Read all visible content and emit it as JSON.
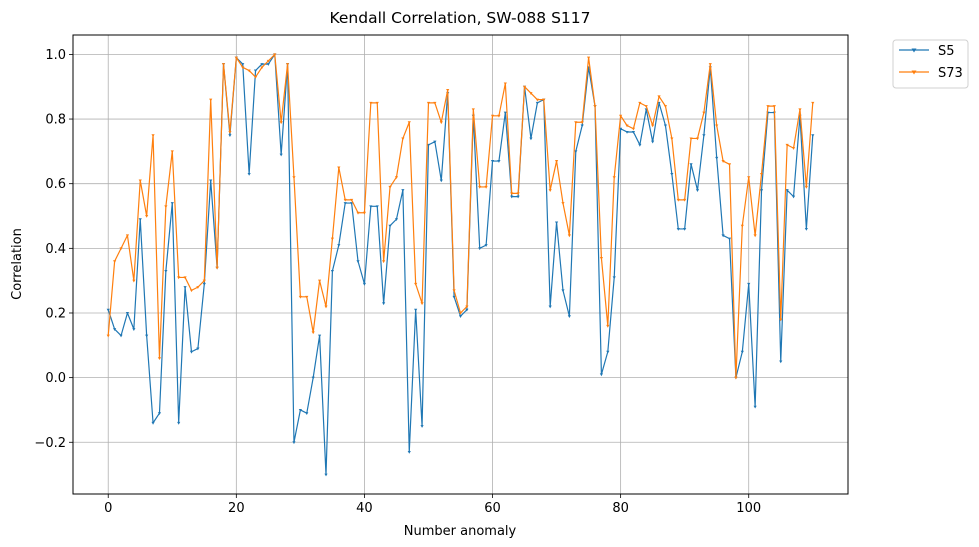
{
  "chart_data": {
    "type": "line",
    "title": "Kendall Correlation, SW-088  S117",
    "xlabel": "Number anomaly",
    "ylabel": "Correlation",
    "xlim": [
      -5.5,
      115.5
    ],
    "ylim": [
      -0.36,
      1.06
    ],
    "xticks": [
      0,
      20,
      40,
      60,
      80,
      100
    ],
    "yticks": [
      -0.2,
      0.0,
      0.2,
      0.4,
      0.6,
      0.8,
      1.0
    ],
    "ytick_labels": [
      "−0.2",
      "0.0",
      "0.2",
      "0.4",
      "0.6",
      "0.8",
      "1.0"
    ],
    "grid": true,
    "legend": "outside-top-right",
    "series": [
      {
        "name": "S5",
        "color": "#1f77b4",
        "values": [
          0.21,
          0.15,
          0.13,
          0.2,
          0.15,
          0.49,
          0.13,
          -0.14,
          -0.11,
          0.33,
          0.54,
          -0.14,
          0.28,
          0.08,
          0.09,
          0.29,
          0.61,
          0.34,
          0.97,
          0.75,
          0.99,
          0.97,
          0.63,
          0.95,
          0.97,
          0.97,
          1.0,
          0.69,
          0.97,
          -0.2,
          -0.1,
          -0.11,
          0.0,
          0.13,
          -0.3,
          0.33,
          0.41,
          0.54,
          0.54,
          0.36,
          0.29,
          0.53,
          0.53,
          0.23,
          0.47,
          0.49,
          0.58,
          -0.23,
          0.21,
          -0.15,
          0.72,
          0.73,
          0.61,
          0.88,
          0.25,
          0.19,
          0.21,
          0.81,
          0.4,
          0.41,
          0.67,
          0.67,
          0.82,
          0.56,
          0.56,
          0.9,
          0.74,
          0.85,
          0.86,
          0.22,
          0.48,
          0.27,
          0.19,
          0.7,
          0.78,
          0.96,
          0.84,
          0.01,
          0.08,
          0.31,
          0.77,
          0.76,
          0.76,
          0.72,
          0.83,
          0.73,
          0.85,
          0.78,
          0.63,
          0.46,
          0.46,
          0.66,
          0.58,
          0.75,
          0.96,
          0.68,
          0.44,
          0.43,
          0.0,
          0.08,
          0.29,
          -0.09,
          0.58,
          0.82,
          0.82,
          0.05,
          0.58,
          0.56,
          0.81,
          0.46,
          0.75
        ]
      },
      {
        "name": "S73",
        "color": "#ff7f0e",
        "values": [
          0.13,
          0.36,
          0.4,
          0.44,
          0.3,
          0.61,
          0.5,
          0.75,
          0.06,
          0.53,
          0.7,
          0.31,
          0.31,
          0.27,
          0.28,
          0.3,
          0.86,
          0.34,
          0.97,
          0.76,
          0.99,
          0.96,
          0.95,
          0.93,
          0.96,
          0.98,
          1.0,
          0.79,
          0.97,
          0.62,
          0.25,
          0.25,
          0.14,
          0.3,
          0.22,
          0.43,
          0.65,
          0.55,
          0.55,
          0.51,
          0.51,
          0.85,
          0.85,
          0.36,
          0.59,
          0.62,
          0.74,
          0.79,
          0.29,
          0.23,
          0.85,
          0.85,
          0.79,
          0.89,
          0.27,
          0.2,
          0.22,
          0.83,
          0.59,
          0.59,
          0.81,
          0.81,
          0.91,
          0.57,
          0.57,
          0.9,
          0.88,
          0.86,
          0.86,
          0.58,
          0.67,
          0.54,
          0.44,
          0.79,
          0.79,
          0.99,
          0.84,
          0.37,
          0.16,
          0.62,
          0.81,
          0.78,
          0.77,
          0.85,
          0.84,
          0.78,
          0.87,
          0.84,
          0.74,
          0.55,
          0.55,
          0.74,
          0.74,
          0.82,
          0.97,
          0.78,
          0.67,
          0.66,
          0.0,
          0.47,
          0.62,
          0.44,
          0.63,
          0.84,
          0.84,
          0.18,
          0.72,
          0.71,
          0.83,
          0.59,
          0.85
        ]
      }
    ]
  }
}
